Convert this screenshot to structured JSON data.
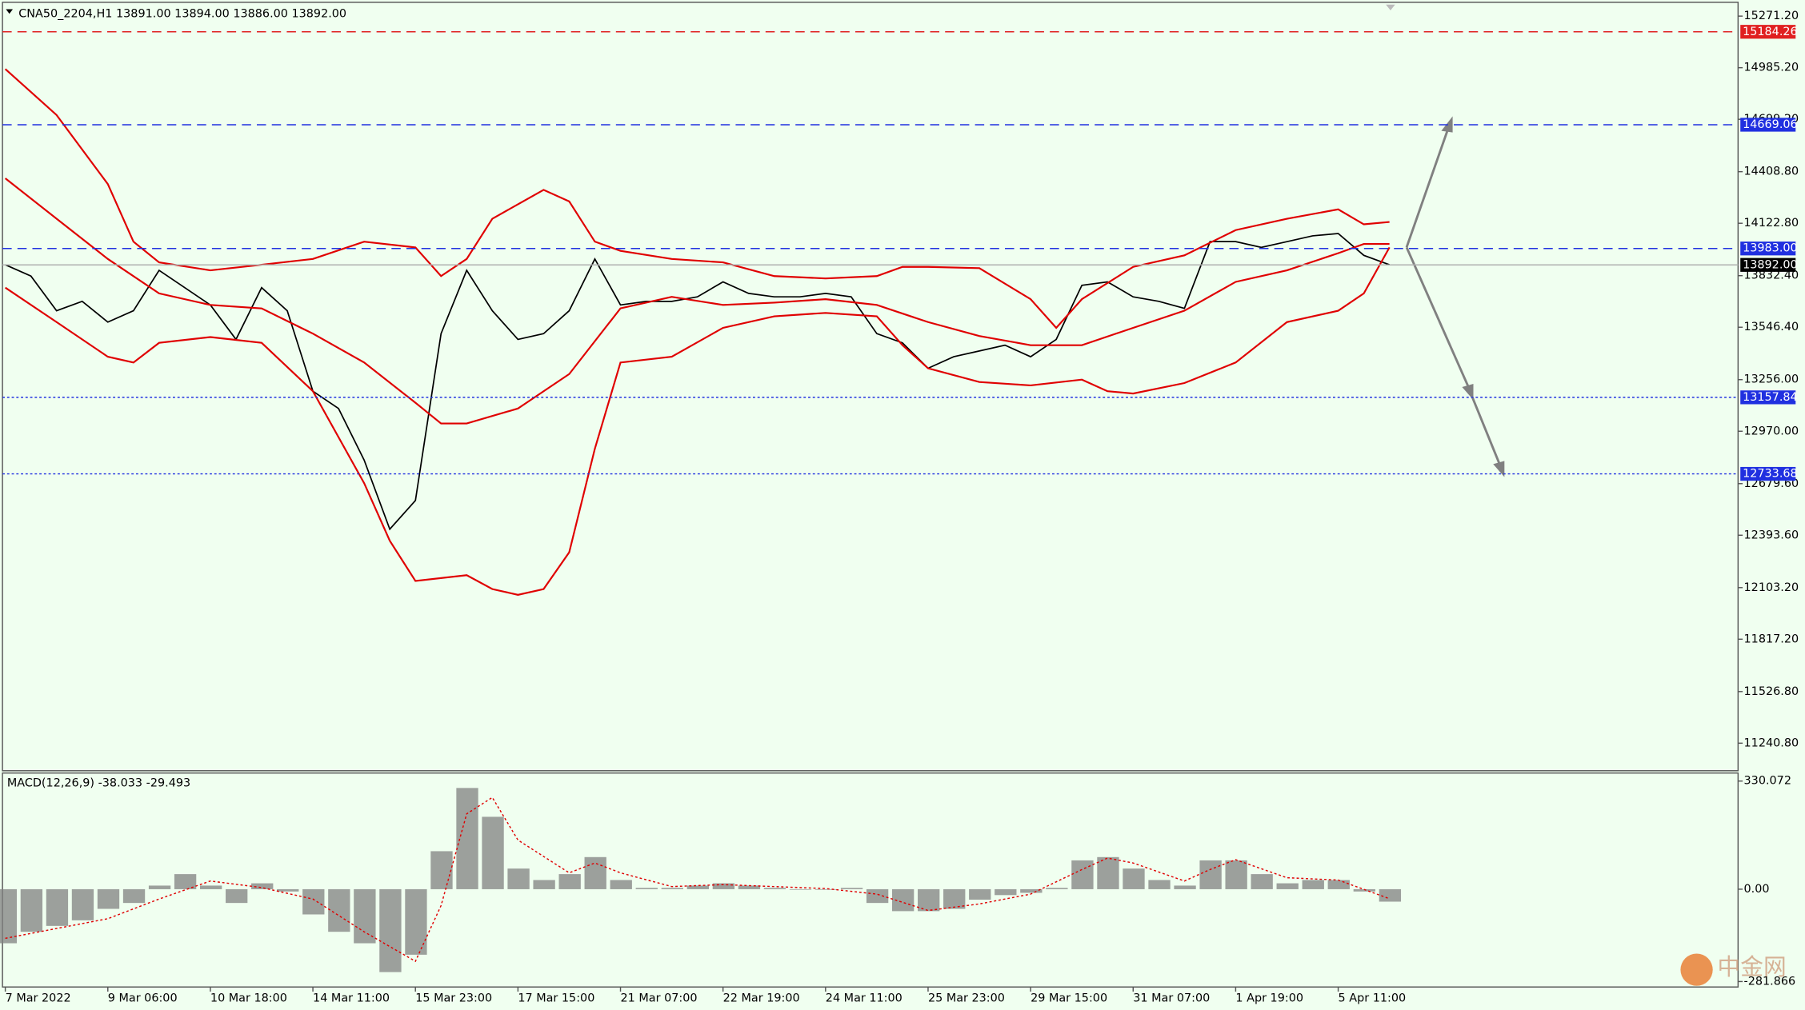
{
  "chart_data": [
    {
      "type": "line",
      "title": "CNA50_2204,H1  13891.00 13894.00 13886.00 13892.00",
      "xlim": [
        -1,
        338
      ],
      "ylim": [
        11088,
        15335
      ],
      "yticks": [
        {
          "value": 15271.2,
          "label": "15271.20"
        },
        {
          "value": 14985.2,
          "label": "14985.20"
        },
        {
          "value": 14699.2,
          "label": "14699.20"
        },
        {
          "value": 14408.8,
          "label": "14408.80"
        },
        {
          "value": 14122.8,
          "label": "14122.80"
        },
        {
          "value": 13832.4,
          "label": "13832.40"
        },
        {
          "value": 13546.4,
          "label": "13546.40"
        },
        {
          "value": 13256,
          "label": "13256.00"
        },
        {
          "value": 12970,
          "label": "12970.00"
        },
        {
          "value": 12679.6,
          "label": "12679.60"
        },
        {
          "value": 12393.6,
          "label": "12393.60"
        },
        {
          "value": 12103.2,
          "label": "12103.20"
        },
        {
          "value": 11817.2,
          "label": "11817.20"
        },
        {
          "value": 11526.8,
          "label": "11526.80"
        },
        {
          "value": 11240.8,
          "label": "11240.80"
        }
      ],
      "levels": [
        {
          "value": 15184.26,
          "label": "15184.26",
          "color": "#e02020",
          "style": "dashed"
        },
        {
          "value": 14669.06,
          "label": "14669.06",
          "color": "#2030e0",
          "style": "dashed"
        },
        {
          "value": 13983,
          "label": "13983.00",
          "color": "#2030e0",
          "style": "dashed"
        },
        {
          "value": 13157.84,
          "label": "13157.84",
          "color": "#2030e0",
          "style": "dotted"
        },
        {
          "value": 12733.68,
          "label": "12733.68",
          "color": "#2030e0",
          "style": "dotted"
        }
      ],
      "price_label": {
        "value": 13892,
        "label": "13892.00"
      },
      "series": [
        {
          "color": "#000000",
          "x": [
            0,
            5,
            10,
            15,
            20,
            25,
            30,
            35,
            40,
            45,
            50,
            55,
            60,
            65,
            70,
            75,
            80,
            85,
            90,
            95,
            100,
            105,
            110,
            115,
            120,
            125,
            130,
            135,
            140,
            145,
            150,
            155,
            160,
            165,
            170,
            175,
            180,
            185,
            190,
            195,
            200,
            205,
            210,
            215,
            220,
            225,
            230,
            235,
            240,
            245,
            250,
            255,
            260,
            265,
            270
          ],
          "values": [
            13893,
            13830,
            13638,
            13690,
            13575,
            13638,
            13862,
            13766,
            13670,
            13479,
            13766,
            13638,
            13192,
            13096,
            12810,
            12427,
            12586,
            13511,
            13862,
            13638,
            13479,
            13511,
            13638,
            13925,
            13670,
            13690,
            13690,
            13715,
            13798,
            13734,
            13715,
            13715,
            13734,
            13715,
            13511,
            13460,
            13319,
            13383,
            13415,
            13447,
            13383,
            13479,
            13779,
            13798,
            13715,
            13690,
            13651,
            14021,
            14021,
            13989,
            14021,
            14053,
            14066,
            13945,
            13893
          ]
        },
        {
          "color": "#e00000",
          "x": [
            0,
            10,
            20,
            25,
            30,
            40,
            50,
            60,
            70,
            80,
            85,
            90,
            95,
            105,
            110,
            115,
            120,
            130,
            140,
            150,
            160,
            170,
            175,
            180,
            190,
            200,
            205,
            210,
            220,
            230,
            240,
            250,
            260,
            265,
            270
          ],
          "values": [
            14978,
            14723,
            14340,
            14021,
            13906,
            13862,
            13893,
            13925,
            14021,
            13989,
            13830,
            13925,
            14148,
            14308,
            14244,
            14021,
            13970,
            13925,
            13906,
            13830,
            13817,
            13830,
            13881,
            13881,
            13874,
            13702,
            13543,
            13702,
            13881,
            13945,
            14085,
            14148,
            14200,
            14117,
            14130
          ]
        },
        {
          "color": "#e00000",
          "x": [
            0,
            10,
            20,
            30,
            40,
            50,
            60,
            70,
            80,
            85,
            90,
            100,
            110,
            120,
            130,
            140,
            150,
            160,
            170,
            180,
            190,
            200,
            210,
            220,
            230,
            240,
            250,
            260,
            265,
            270
          ],
          "values": [
            14372,
            14148,
            13925,
            13734,
            13670,
            13651,
            13511,
            13351,
            13128,
            13013,
            13013,
            13096,
            13287,
            13651,
            13715,
            13670,
            13683,
            13702,
            13670,
            13575,
            13498,
            13447,
            13447,
            13543,
            13638,
            13798,
            13862,
            13957,
            14008,
            14008
          ]
        },
        {
          "color": "#e00000",
          "x": [
            0,
            10,
            20,
            25,
            30,
            40,
            50,
            60,
            70,
            75,
            80,
            90,
            95,
            100,
            105,
            110,
            115,
            120,
            130,
            140,
            150,
            160,
            170,
            175,
            180,
            190,
            200,
            210,
            215,
            220,
            230,
            240,
            250,
            260,
            265,
            270
          ],
          "values": [
            13766,
            13575,
            13383,
            13351,
            13460,
            13492,
            13460,
            13192,
            12682,
            12363,
            12140,
            12172,
            12095,
            12063,
            12095,
            12299,
            12873,
            13351,
            13383,
            13543,
            13607,
            13626,
            13607,
            13447,
            13319,
            13243,
            13224,
            13256,
            13192,
            13179,
            13237,
            13351,
            13575,
            13638,
            13734,
            13989
          ]
        }
      ]
    },
    {
      "type": "bar",
      "title": "MACD(12,26,9) -38.033 -29.493",
      "xlim": [
        -1,
        338
      ],
      "ylim": [
        -298.5,
        354.6
      ],
      "yticks": [
        330.072,
        {
          "value": 0,
          "label": "0.00"
        },
        -281.866
      ],
      "xticks": [
        {
          "value": 0,
          "label": "7 Mar 2022"
        },
        {
          "value": 20,
          "label": "9 Mar 06:00"
        },
        {
          "value": 40,
          "label": "10 Mar 18:00"
        },
        {
          "value": 60,
          "label": "14 Mar 11:00"
        },
        {
          "value": 80,
          "label": "15 Mar 23:00"
        },
        {
          "value": 100,
          "label": "17 Mar 15:00"
        },
        {
          "value": 120,
          "label": "21 Mar 07:00"
        },
        {
          "value": 140,
          "label": "22 Mar 19:00"
        },
        {
          "value": 160,
          "label": "24 Mar 11:00"
        },
        {
          "value": 180,
          "label": "25 Mar 23:00"
        },
        {
          "value": 200,
          "label": "29 Mar 15:00"
        },
        {
          "value": 220,
          "label": "31 Mar 07:00"
        },
        {
          "value": 240,
          "label": "1 Apr 19:00"
        },
        {
          "value": 260,
          "label": "5 Apr 11:00"
        }
      ],
      "x": [
        0,
        5,
        10,
        15,
        20,
        25,
        30,
        35,
        40,
        45,
        50,
        55,
        60,
        65,
        70,
        75,
        80,
        85,
        90,
        95,
        100,
        105,
        110,
        115,
        120,
        125,
        130,
        135,
        140,
        145,
        150,
        155,
        160,
        165,
        170,
        175,
        180,
        185,
        190,
        195,
        200,
        205,
        210,
        215,
        220,
        225,
        230,
        235,
        240,
        245,
        250,
        255,
        260,
        265,
        270
      ],
      "values": [
        -165,
        -130,
        -112,
        -95,
        -60,
        -42,
        11,
        46,
        11,
        -42,
        18,
        -7,
        -77,
        -130,
        -165,
        -253,
        -200,
        116,
        309,
        221,
        63,
        28,
        46,
        98,
        28,
        4,
        4,
        11,
        18,
        11,
        4,
        0,
        0,
        4,
        -42,
        -67,
        -67,
        -60,
        -32,
        -18,
        -11,
        4,
        88,
        98,
        63,
        28,
        11,
        88,
        88,
        46,
        18,
        28,
        28,
        -7,
        -38
      ],
      "color": "#808080",
      "signal": {
        "color": "#e00000",
        "x": [
          0,
          10,
          20,
          30,
          40,
          50,
          60,
          70,
          80,
          85,
          90,
          95,
          100,
          110,
          115,
          120,
          130,
          140,
          150,
          160,
          170,
          180,
          190,
          200,
          210,
          215,
          220,
          230,
          235,
          240,
          250,
          260,
          270
        ],
        "values": [
          -150,
          -120,
          -90,
          -30,
          25,
          5,
          -30,
          -130,
          -220,
          -50,
          230,
          280,
          150,
          50,
          80,
          50,
          8,
          14,
          8,
          2,
          -15,
          -65,
          -45,
          -15,
          60,
          95,
          80,
          25,
          60,
          90,
          35,
          28,
          -29
        ]
      }
    }
  ],
  "watermark": "中金网"
}
